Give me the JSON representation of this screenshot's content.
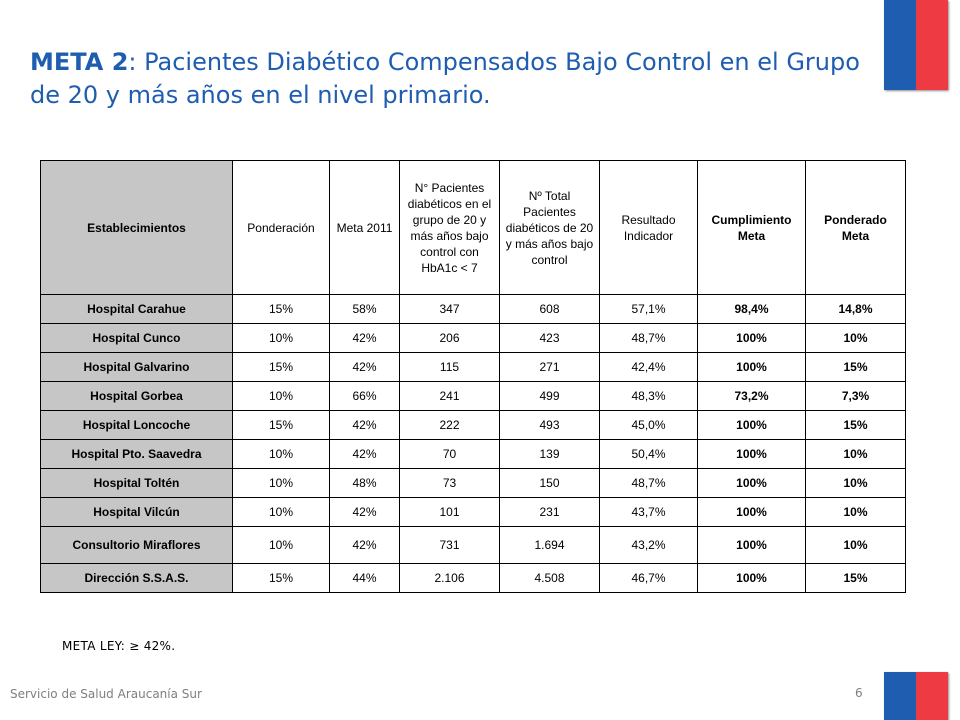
{
  "title": {
    "lead": "META 2",
    "rest": ": Pacientes Diabético Compensados Bajo Control en el Grupo de 20 y más años en el nivel primario."
  },
  "table": {
    "headers": [
      "Establecimientos",
      "Ponderación",
      "Meta 2011",
      "N° Pacientes diabéticos en el grupo de 20 y más años bajo control con HbA1c < 7",
      "Nº Total Pacientes diabéticos de 20 y más años bajo control",
      "Resultado Indicador",
      "Cumplimiento Meta",
      "Ponderado Meta"
    ],
    "rows": [
      {
        "name": "Hospital Carahue",
        "ponderacion": "15%",
        "meta": "58%",
        "hba1c": "347",
        "total": "608",
        "resultado": "57,1%",
        "cumplimiento": "98,4%",
        "ponderado": "14,8%"
      },
      {
        "name": "Hospital Cunco",
        "ponderacion": "10%",
        "meta": "42%",
        "hba1c": "206",
        "total": "423",
        "resultado": "48,7%",
        "cumplimiento": "100%",
        "ponderado": "10%"
      },
      {
        "name": "Hospital Galvarino",
        "ponderacion": "15%",
        "meta": "42%",
        "hba1c": "115",
        "total": "271",
        "resultado": "42,4%",
        "cumplimiento": "100%",
        "ponderado": "15%"
      },
      {
        "name": "Hospital Gorbea",
        "ponderacion": "10%",
        "meta": "66%",
        "hba1c": "241",
        "total": "499",
        "resultado": "48,3%",
        "cumplimiento": "73,2%",
        "ponderado": "7,3%"
      },
      {
        "name": "Hospital Loncoche",
        "ponderacion": "15%",
        "meta": "42%",
        "hba1c": "222",
        "total": "493",
        "resultado": "45,0%",
        "cumplimiento": "100%",
        "ponderado": "15%"
      },
      {
        "name": "Hospital Pto. Saavedra",
        "ponderacion": "10%",
        "meta": "42%",
        "hba1c": "70",
        "total": "139",
        "resultado": "50,4%",
        "cumplimiento": "100%",
        "ponderado": "10%"
      },
      {
        "name": "Hospital Toltén",
        "ponderacion": "10%",
        "meta": "48%",
        "hba1c": "73",
        "total": "150",
        "resultado": "48,7%",
        "cumplimiento": "100%",
        "ponderado": "10%"
      },
      {
        "name": "Hospital Vilcún",
        "ponderacion": "10%",
        "meta": "42%",
        "hba1c": "101",
        "total": "231",
        "resultado": "43,7%",
        "cumplimiento": "100%",
        "ponderado": "10%"
      },
      {
        "name": "Consultorio Miraflores",
        "ponderacion": "10%",
        "meta": "42%",
        "hba1c": "731",
        "total": "1.694",
        "resultado": "43,2%",
        "cumplimiento": "100%",
        "ponderado": "10%"
      },
      {
        "name": "Dirección S.S.A.S.",
        "ponderacion": "15%",
        "meta": "44%",
        "hba1c": "2.106",
        "total": "4.508",
        "resultado": "46,7%",
        "cumplimiento": "100%",
        "ponderado": "15%"
      }
    ]
  },
  "meta_ley": "META LEY: ≥ 42%.",
  "footer": {
    "organization": "Servicio de Salud Araucanía Sur",
    "page_number": "6"
  },
  "colors": {
    "brand_blue": "#1f5db0",
    "brand_red": "#ee3a43",
    "header_gray": "#c6c6c6"
  }
}
